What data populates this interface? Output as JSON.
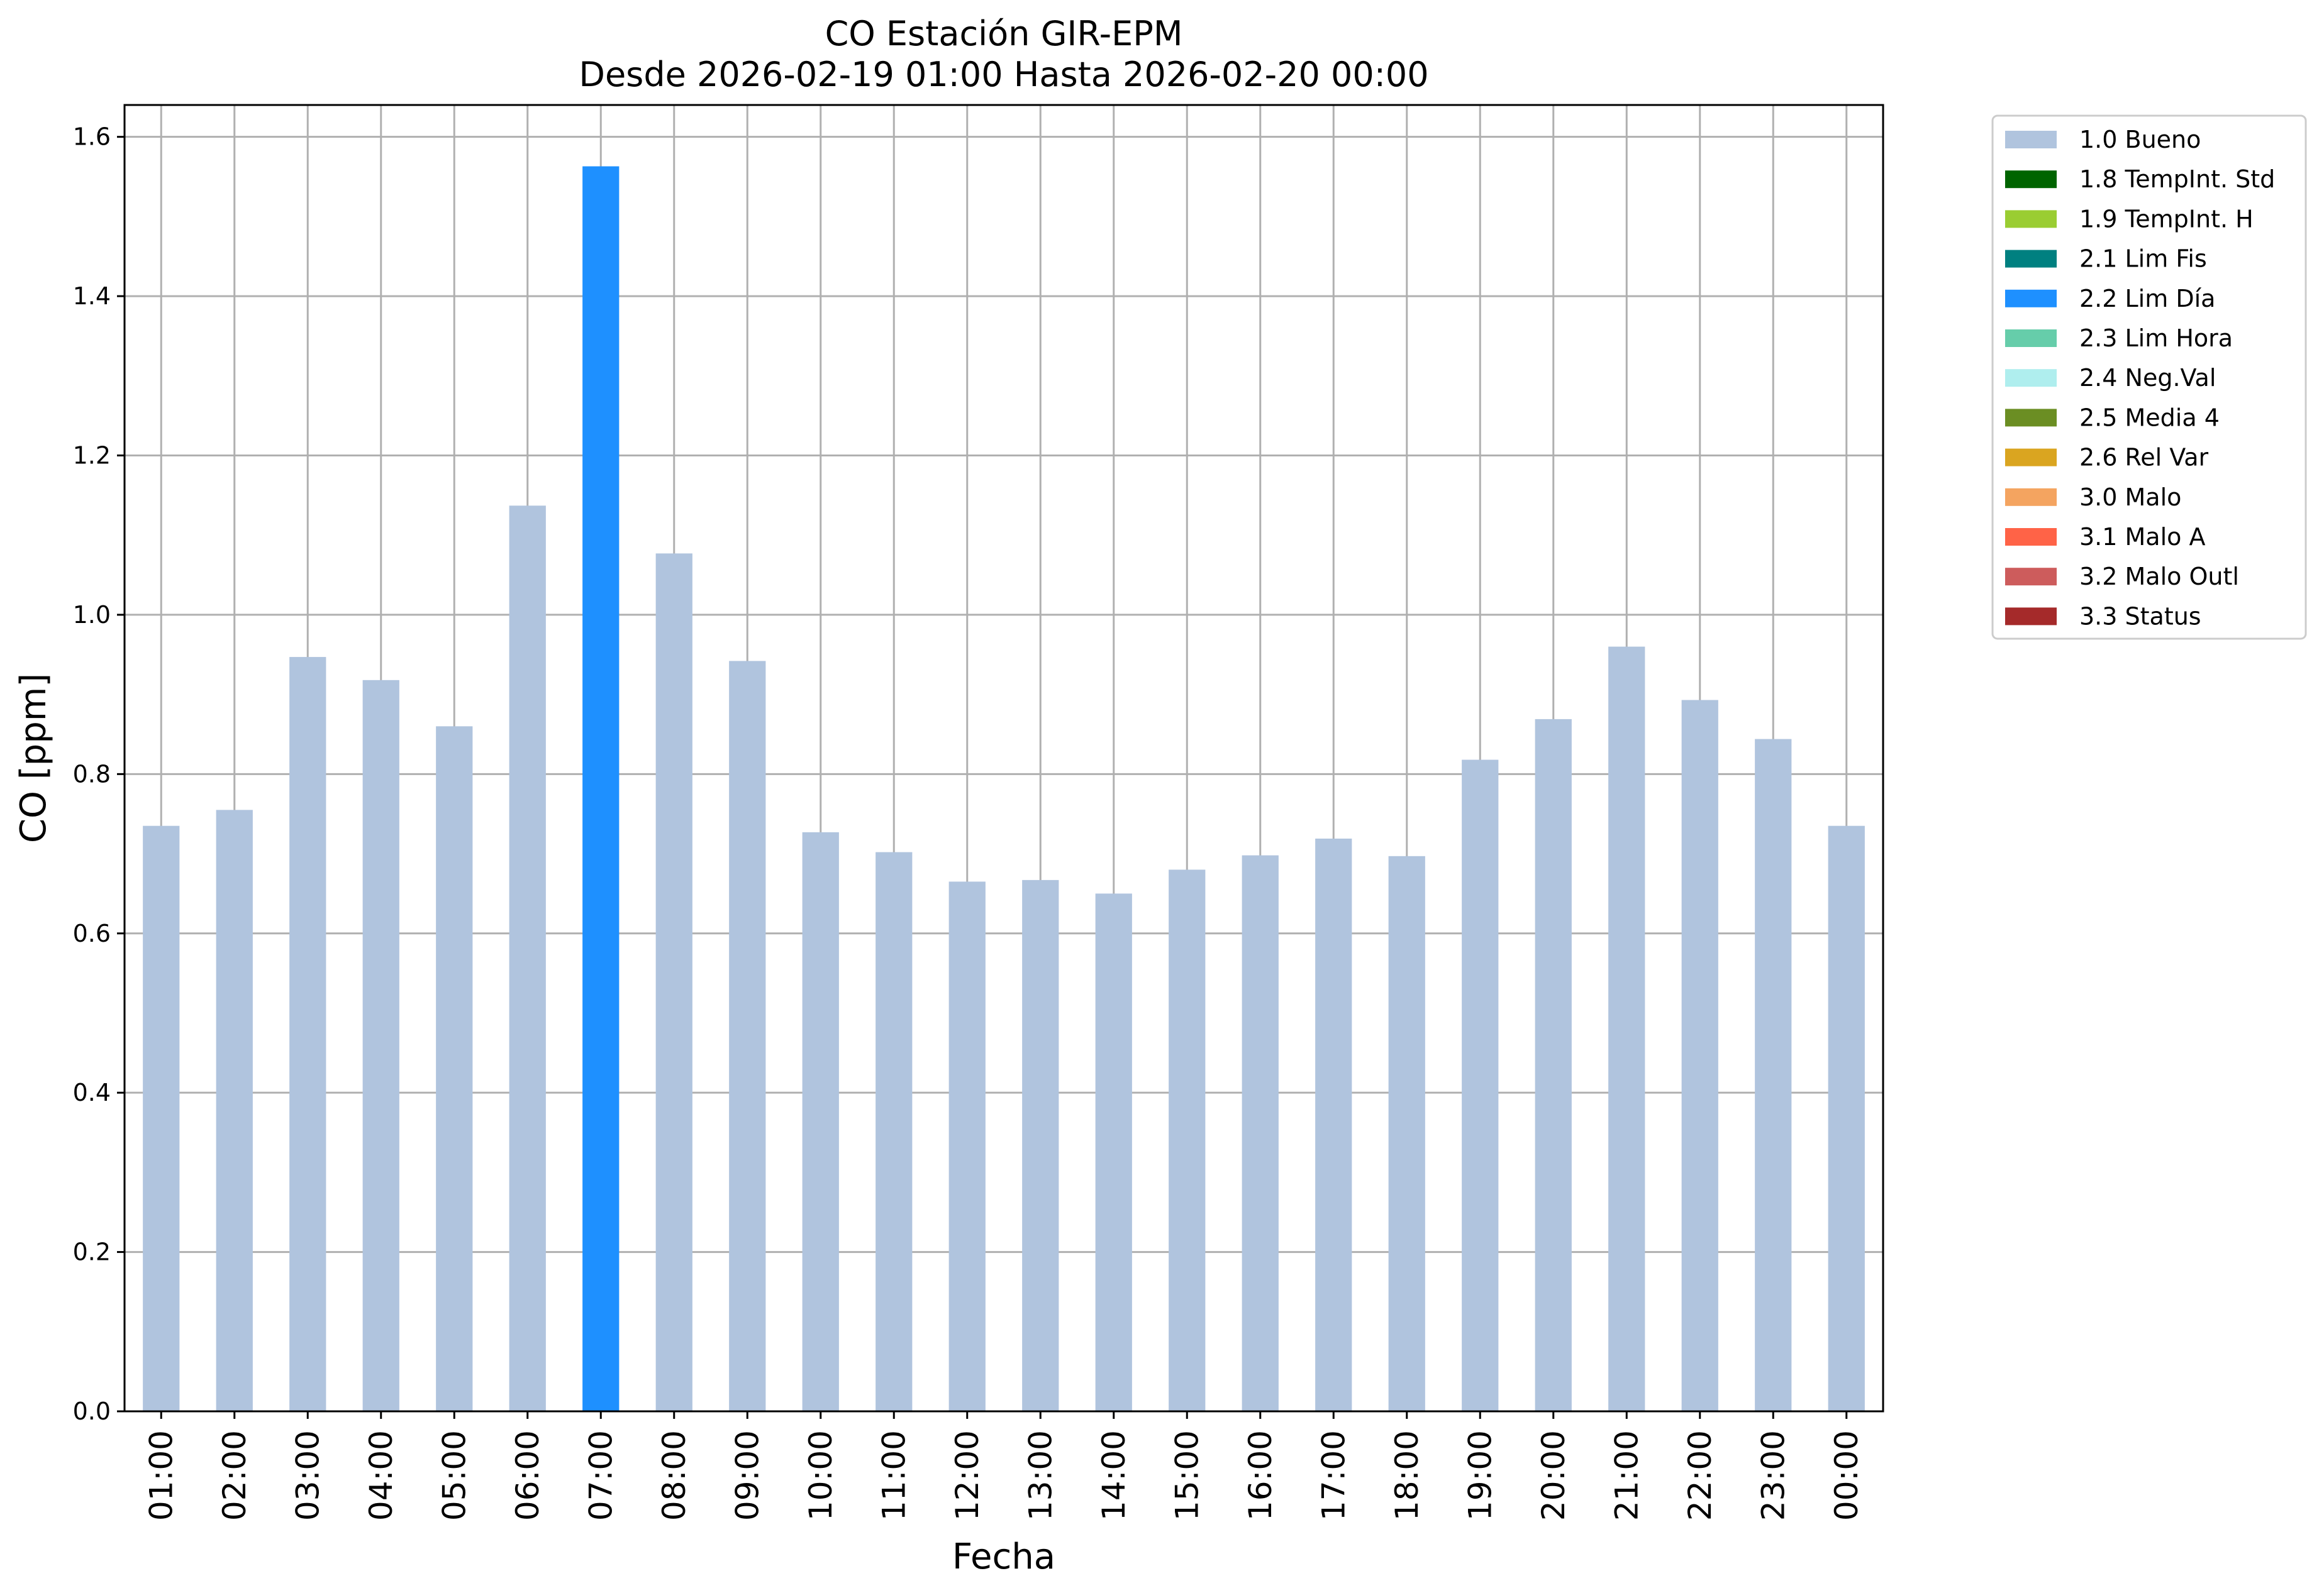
{
  "chart_data": {
    "type": "bar",
    "title": "CO Estación GIR-EPM",
    "subtitle": "Desde 2026-02-19 01:00 Hasta 2026-02-20 00:00",
    "xlabel": "Fecha",
    "ylabel": "CO [ppm]",
    "ylim": [
      0,
      1.64
    ],
    "yticks": [
      "0.0",
      "0.2",
      "0.4",
      "0.6",
      "0.8",
      "1.0",
      "1.2",
      "1.4",
      "1.6"
    ],
    "grid": true,
    "legend_position": "outside-top-right",
    "categories": [
      "01:00",
      "02:00",
      "03:00",
      "04:00",
      "05:00",
      "06:00",
      "07:00",
      "08:00",
      "09:00",
      "10:00",
      "11:00",
      "12:00",
      "13:00",
      "14:00",
      "15:00",
      "16:00",
      "17:00",
      "18:00",
      "19:00",
      "20:00",
      "21:00",
      "22:00",
      "23:00",
      "00:00"
    ],
    "values": [
      0.735,
      0.755,
      0.947,
      0.918,
      0.86,
      1.137,
      1.563,
      1.077,
      0.942,
      0.727,
      0.702,
      0.665,
      0.667,
      0.65,
      0.68,
      0.698,
      0.719,
      0.697,
      0.818,
      0.869,
      0.96,
      0.893,
      0.844,
      0.735
    ],
    "flags": [
      "1.0 Bueno",
      "1.0 Bueno",
      "1.0 Bueno",
      "1.0 Bueno",
      "1.0 Bueno",
      "1.0 Bueno",
      "2.2 Lim Día",
      "1.0 Bueno",
      "1.0 Bueno",
      "1.0 Bueno",
      "1.0 Bueno",
      "1.0 Bueno",
      "1.0 Bueno",
      "1.0 Bueno",
      "1.0 Bueno",
      "1.0 Bueno",
      "1.0 Bueno",
      "1.0 Bueno",
      "1.0 Bueno",
      "1.0 Bueno",
      "1.0 Bueno",
      "1.0 Bueno",
      "1.0 Bueno",
      "1.0 Bueno"
    ],
    "legend": [
      {
        "label": "1.0 Bueno",
        "color": "#b0c4de"
      },
      {
        "label": "1.8 TempInt. Std",
        "color": "#006400"
      },
      {
        "label": "1.9 TempInt. H",
        "color": "#9acd32"
      },
      {
        "label": "2.1 Lim Fis",
        "color": "#008080"
      },
      {
        "label": "2.2 Lim Día",
        "color": "#1e90ff"
      },
      {
        "label": "2.3 Lim Hora",
        "color": "#66cdaa"
      },
      {
        "label": "2.4 Neg.Val",
        "color": "#afeeee"
      },
      {
        "label": "2.5 Media 4",
        "color": "#6b8e23"
      },
      {
        "label": "2.6 Rel Var",
        "color": "#daa520"
      },
      {
        "label": "3.0 Malo",
        "color": "#f4a460"
      },
      {
        "label": "3.1 Malo A",
        "color": "#ff6347"
      },
      {
        "label": "3.2 Malo Outl",
        "color": "#cd5c5c"
      },
      {
        "label": "3.3 Status",
        "color": "#a52a2a"
      }
    ]
  }
}
